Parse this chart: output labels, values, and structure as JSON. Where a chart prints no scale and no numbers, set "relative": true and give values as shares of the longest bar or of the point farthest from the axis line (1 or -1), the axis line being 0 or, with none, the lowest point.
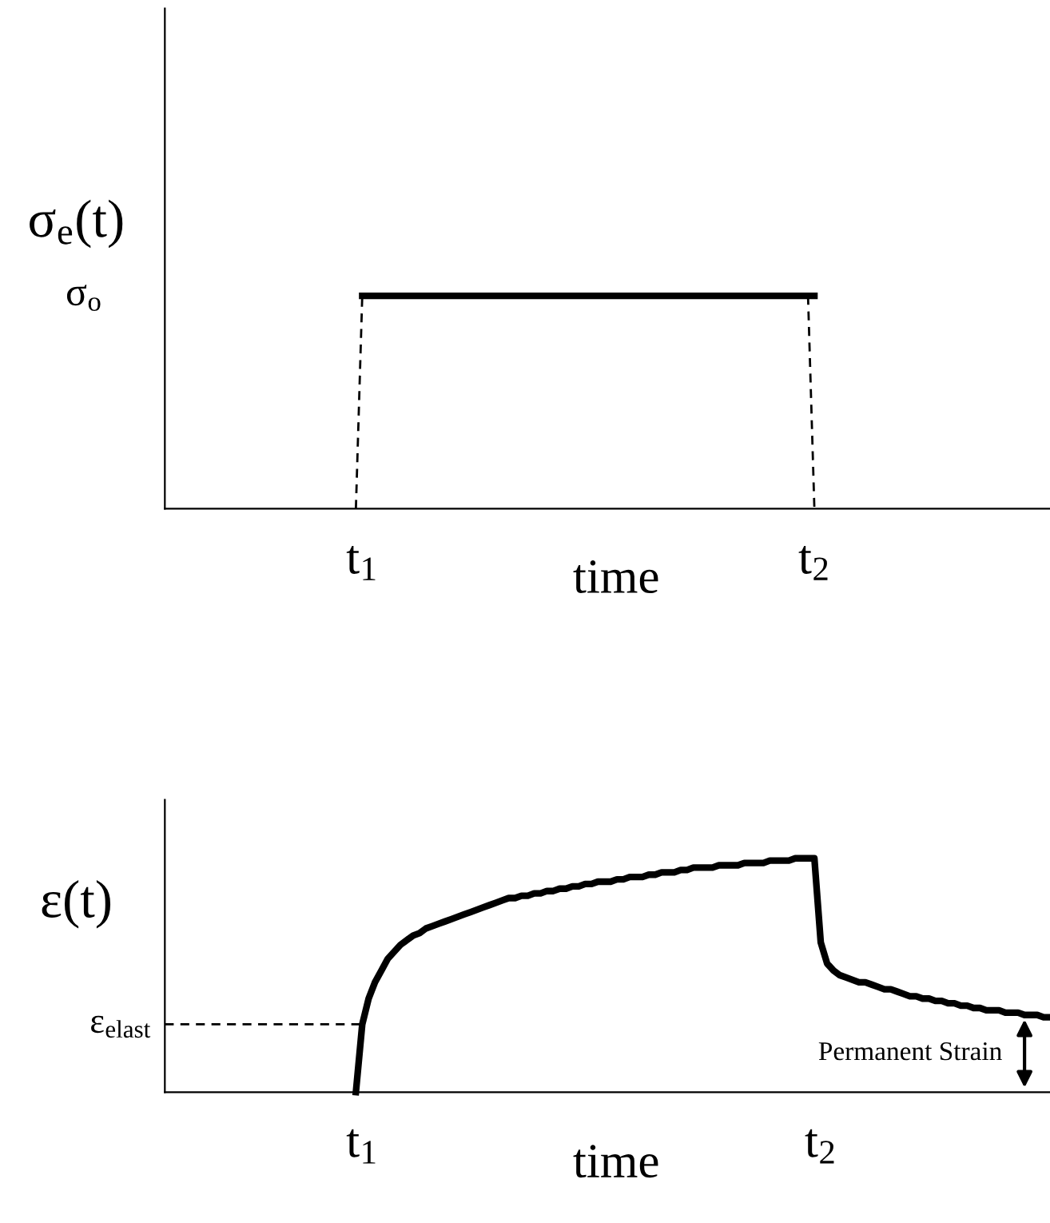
{
  "chart_data": [
    {
      "type": "line",
      "relative": true,
      "ylabel": "σ$_{e}$(t)",
      "xlabel": "time",
      "tick_labels": "x",
      "grid": false,
      "legend": false,
      "categories": [
        null,
        null,
        null,
        null,
        null,
        null,
        null,
        null,
        null,
        null,
        null,
        null,
        null,
        null,
        null,
        null,
        null,
        null,
        null,
        null,
        null,
        null,
        null,
        null,
        null,
        null,
        null,
        null,
        null,
        null,
        null,
        "t$_{1}$",
        null,
        null,
        null,
        null,
        null,
        null,
        null,
        null,
        null,
        null,
        null,
        null,
        null,
        null,
        null,
        null,
        null,
        null,
        null,
        null,
        null,
        null,
        null,
        null,
        null,
        null,
        null,
        null,
        null,
        null,
        null,
        null,
        null,
        null,
        null,
        null,
        null,
        null,
        null,
        null,
        null,
        null,
        null,
        null,
        null,
        null,
        null,
        null,
        null,
        null,
        null,
        null,
        null,
        null,
        null,
        null,
        null,
        null,
        null,
        null,
        null,
        null,
        null,
        null,
        null,
        null,
        null,
        null,
        null,
        null,
        "t$_{2}$",
        null,
        null,
        null,
        null,
        null,
        null,
        null,
        null,
        null,
        null,
        null,
        null,
        null,
        null,
        null,
        null,
        null,
        null,
        null,
        null,
        null,
        null,
        null,
        null,
        null,
        null,
        null,
        null,
        null,
        null,
        null,
        null,
        null,
        null,
        null,
        null,
        null
      ],
      "series": [
        {
          "color": "#000000",
          "line_style": "solid",
          "values": [
            null,
            null,
            null,
            null,
            null,
            null,
            null,
            null,
            null,
            null,
            null,
            null,
            null,
            null,
            null,
            null,
            null,
            null,
            null,
            null,
            null,
            null,
            null,
            null,
            null,
            null,
            null,
            null,
            null,
            null,
            null,
            1,
            1,
            1,
            1,
            1,
            1,
            1,
            1,
            1,
            1,
            1,
            1,
            1,
            1,
            1,
            1,
            1,
            1,
            1,
            1,
            1,
            1,
            1,
            1,
            1,
            1,
            1,
            1,
            1,
            1,
            1,
            1,
            1,
            1,
            1,
            1,
            1,
            1,
            1,
            1,
            1,
            1,
            1,
            1,
            1,
            1,
            1,
            1,
            1,
            1,
            1,
            1,
            1,
            1,
            1,
            1,
            1,
            1,
            1,
            1,
            1,
            1,
            1,
            1,
            1,
            1,
            1,
            1,
            1,
            1,
            1,
            1,
            null,
            null,
            null,
            null,
            null,
            null,
            null,
            null,
            null,
            null,
            null,
            null,
            null,
            null,
            null,
            null,
            null,
            null,
            null,
            null,
            null,
            null,
            null,
            null,
            null,
            null,
            null,
            null,
            null,
            null,
            null,
            null,
            null,
            null,
            null,
            null,
            null
          ]
        },
        {
          "color": "#000000",
          "line_style": "dashed",
          "values": [
            null,
            null,
            null,
            null,
            null,
            null,
            null,
            null,
            null,
            null,
            null,
            null,
            null,
            null,
            null,
            null,
            null,
            null,
            null,
            null,
            null,
            null,
            null,
            null,
            null,
            null,
            null,
            null,
            null,
            null,
            0,
            1,
            null,
            null,
            null,
            null,
            null,
            null,
            null,
            null,
            null,
            null,
            null,
            null,
            null,
            null,
            null,
            null,
            null,
            null,
            null,
            null,
            null,
            null,
            null,
            null,
            null,
            null,
            null,
            null,
            null,
            null,
            null,
            null,
            null,
            null,
            null,
            null,
            null,
            null,
            null,
            null,
            null,
            null,
            null,
            null,
            null,
            null,
            null,
            null,
            null,
            null,
            null,
            null,
            null,
            null,
            null,
            null,
            null,
            null,
            null,
            null,
            null,
            null,
            null,
            null,
            null,
            null,
            null,
            null,
            null,
            null,
            null,
            null,
            null,
            null,
            null,
            null,
            null,
            null,
            null,
            null,
            null,
            null,
            null,
            null,
            null,
            null,
            null,
            null,
            null,
            null,
            null,
            null,
            null,
            null,
            null,
            null,
            null,
            null,
            null,
            null,
            null,
            null,
            null,
            null,
            null,
            null,
            null,
            null
          ]
        },
        {
          "color": "#000000",
          "line_style": "dashed",
          "values": [
            null,
            null,
            null,
            null,
            null,
            null,
            null,
            null,
            null,
            null,
            null,
            null,
            null,
            null,
            null,
            null,
            null,
            null,
            null,
            null,
            null,
            null,
            null,
            null,
            null,
            null,
            null,
            null,
            null,
            null,
            null,
            null,
            null,
            null,
            null,
            null,
            null,
            null,
            null,
            null,
            null,
            null,
            null,
            null,
            null,
            null,
            null,
            null,
            null,
            null,
            null,
            null,
            null,
            null,
            null,
            null,
            null,
            null,
            null,
            null,
            null,
            null,
            null,
            null,
            null,
            null,
            null,
            null,
            null,
            null,
            null,
            null,
            null,
            null,
            null,
            null,
            null,
            null,
            null,
            null,
            null,
            null,
            null,
            null,
            null,
            null,
            null,
            null,
            null,
            null,
            null,
            null,
            null,
            null,
            null,
            null,
            null,
            null,
            null,
            null,
            null,
            1,
            0,
            null,
            null,
            null,
            null,
            null,
            null,
            null,
            null,
            null,
            null,
            null,
            null,
            null,
            null,
            null,
            null,
            null,
            null,
            null,
            null,
            null,
            null,
            null,
            null,
            null,
            null,
            null,
            null,
            null,
            null,
            null,
            null,
            null,
            null,
            null,
            null,
            null
          ]
        }
      ],
      "annotations": [
        "σ$_{o}$"
      ]
    },
    {
      "type": "line",
      "relative": true,
      "ylabel": "ε(t)",
      "xlabel": "time",
      "tick_labels": "x",
      "grid": false,
      "legend": false,
      "categories": [
        null,
        null,
        null,
        null,
        null,
        null,
        null,
        null,
        null,
        null,
        null,
        null,
        null,
        null,
        null,
        null,
        null,
        null,
        null,
        null,
        null,
        null,
        null,
        null,
        null,
        null,
        null,
        null,
        null,
        null,
        null,
        "t$_{1}$",
        null,
        null,
        null,
        null,
        null,
        null,
        null,
        null,
        null,
        null,
        null,
        null,
        null,
        null,
        null,
        null,
        null,
        null,
        null,
        null,
        null,
        null,
        null,
        null,
        null,
        null,
        null,
        null,
        null,
        null,
        null,
        null,
        null,
        null,
        null,
        null,
        null,
        null,
        null,
        null,
        null,
        null,
        null,
        null,
        null,
        null,
        null,
        null,
        null,
        null,
        null,
        null,
        null,
        null,
        null,
        null,
        null,
        null,
        null,
        null,
        null,
        null,
        null,
        null,
        null,
        null,
        null,
        null,
        null,
        null,
        null,
        "t$_{2}$",
        null,
        null,
        null,
        null,
        null,
        null,
        null,
        null,
        null,
        null,
        null,
        null,
        null,
        null,
        null,
        null,
        null,
        null,
        null,
        null,
        null,
        null,
        null,
        null,
        null,
        null,
        null,
        null,
        null,
        null,
        null,
        null,
        null,
        null,
        null,
        null
      ],
      "series": [
        {
          "color": "#000000",
          "line_style": "solid",
          "values": [
            null,
            null,
            null,
            null,
            null,
            null,
            null,
            null,
            null,
            null,
            null,
            null,
            null,
            null,
            null,
            null,
            null,
            null,
            null,
            null,
            null,
            null,
            null,
            null,
            null,
            null,
            null,
            null,
            null,
            null,
            0,
            0.29,
            0.4,
            0.47,
            0.52,
            0.57,
            0.6,
            0.63,
            0.65,
            0.67,
            0.68,
            0.7,
            0.71,
            0.72,
            0.73,
            0.74,
            0.75,
            0.76,
            0.77,
            0.78,
            0.79,
            0.8,
            0.81,
            0.82,
            0.83,
            0.83,
            0.84,
            0.84,
            0.85,
            0.85,
            0.86,
            0.86,
            0.87,
            0.87,
            0.88,
            0.88,
            0.89,
            0.89,
            0.9,
            0.9,
            0.9,
            0.91,
            0.91,
            0.92,
            0.92,
            0.92,
            0.93,
            0.93,
            0.94,
            0.94,
            0.94,
            0.95,
            0.95,
            0.96,
            0.96,
            0.96,
            0.96,
            0.97,
            0.97,
            0.97,
            0.97,
            0.98,
            0.98,
            0.98,
            0.98,
            0.99,
            0.99,
            0.99,
            0.99,
            1.0,
            1.0,
            1.0,
            1.0,
            0.64,
            0.55,
            0.52,
            0.5,
            0.49,
            0.48,
            0.47,
            0.47,
            0.46,
            0.45,
            0.44,
            0.44,
            0.43,
            0.42,
            0.41,
            0.41,
            0.4,
            0.4,
            0.39,
            0.39,
            0.38,
            0.38,
            0.37,
            0.37,
            0.36,
            0.36,
            0.35,
            0.35,
            0.35,
            0.34,
            0.34,
            0.34,
            0.33,
            0.33,
            0.33,
            0.32,
            0.32
          ]
        },
        {
          "color": "#000000",
          "line_style": "dashed",
          "values": [
            0.29,
            0.29,
            0.29,
            0.29,
            0.29,
            0.29,
            0.29,
            0.29,
            0.29,
            0.29,
            0.29,
            0.29,
            0.29,
            0.29,
            0.29,
            0.29,
            0.29,
            0.29,
            0.29,
            0.29,
            0.29,
            0.29,
            0.29,
            0.29,
            0.29,
            0.29,
            0.29,
            0.29,
            0.29,
            0.29,
            0.29,
            0.29,
            null,
            null,
            null,
            null,
            null,
            null,
            null,
            null,
            null,
            null,
            null,
            null,
            null,
            null,
            null,
            null,
            null,
            null,
            null,
            null,
            null,
            null,
            null,
            null,
            null,
            null,
            null,
            null,
            null,
            null,
            null,
            null,
            null,
            null,
            null,
            null,
            null,
            null,
            null,
            null,
            null,
            null,
            null,
            null,
            null,
            null,
            null,
            null,
            null,
            null,
            null,
            null,
            null,
            null,
            null,
            null,
            null,
            null,
            null,
            null,
            null,
            null,
            null,
            null,
            null,
            null,
            null,
            null,
            null,
            null,
            null,
            null,
            null,
            null,
            null,
            null,
            null,
            null,
            null,
            null,
            null,
            null,
            null,
            null,
            null,
            null,
            null,
            null,
            null,
            null,
            null,
            null,
            null,
            null,
            null,
            null,
            null,
            null,
            null,
            null,
            null,
            null,
            null,
            null,
            null,
            null,
            null,
            null
          ]
        }
      ],
      "annotations": [
        "ε$_{elast}$",
        "Permanent Strain"
      ]
    }
  ]
}
